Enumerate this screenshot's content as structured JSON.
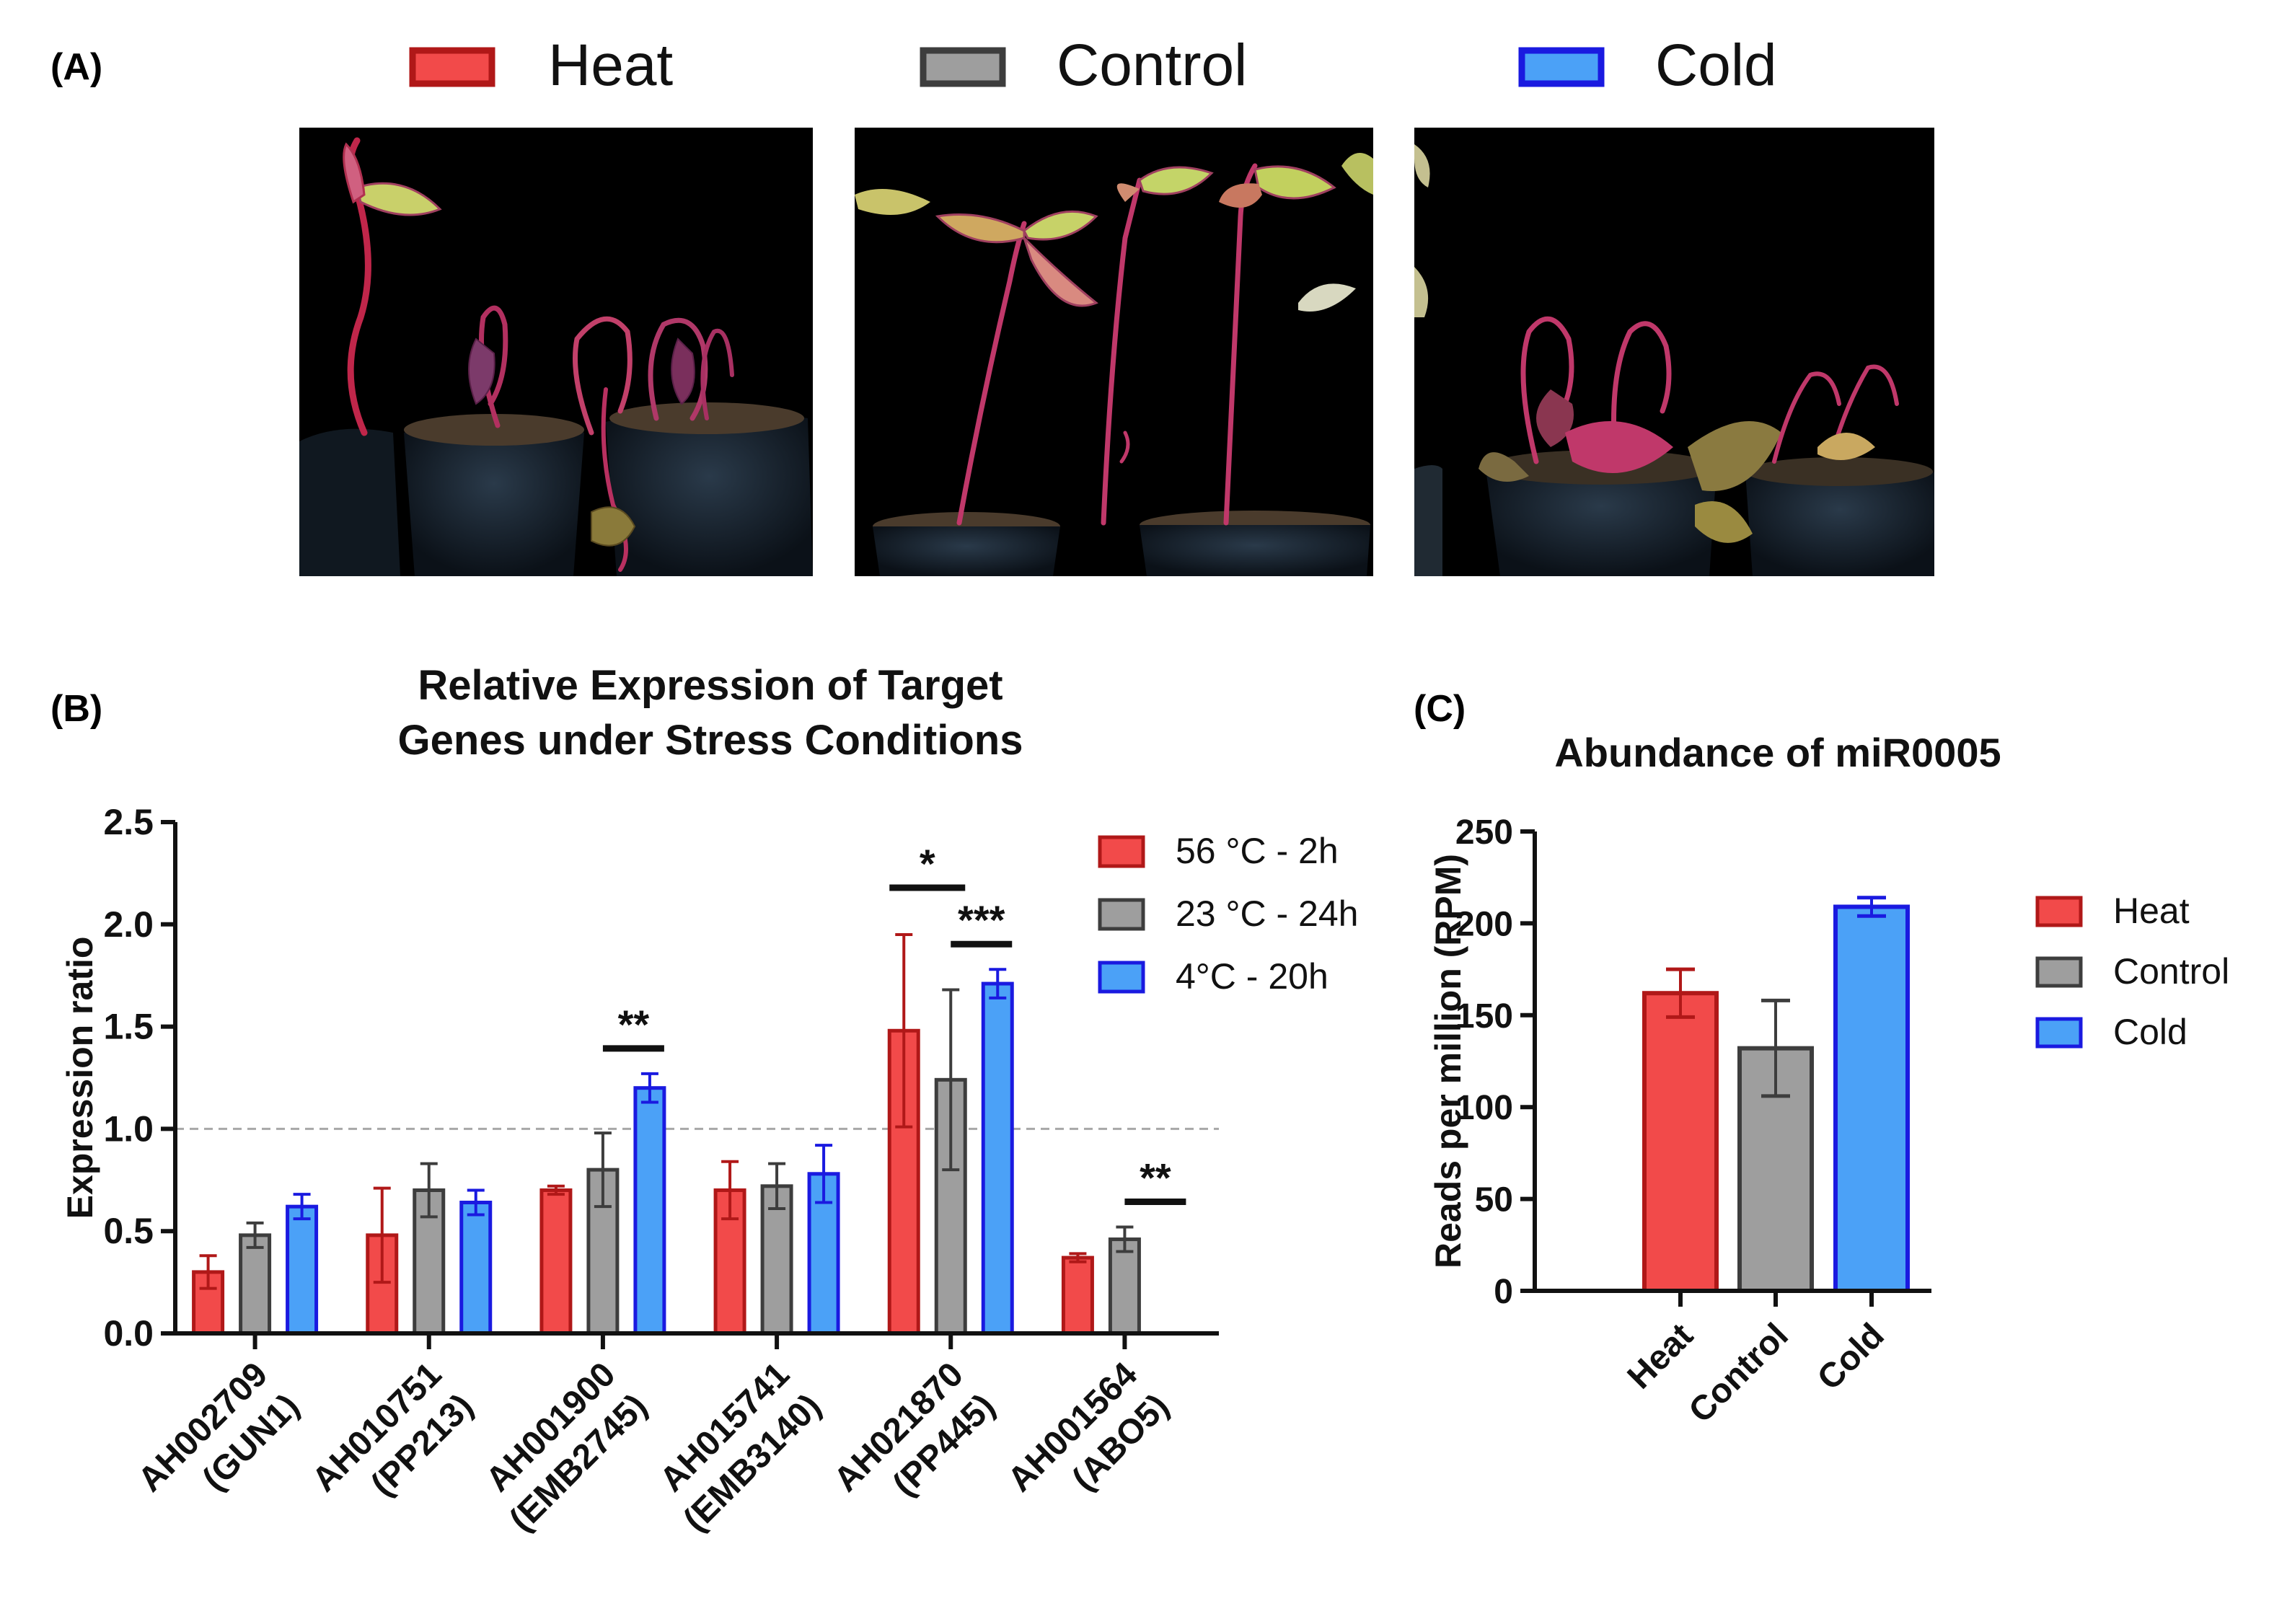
{
  "panels": {
    "a": {
      "label": "(A)",
      "legend": [
        {
          "name": "Heat",
          "fill": "#f24a4a",
          "stroke": "#b01818"
        },
        {
          "name": "Control",
          "fill": "#9e9e9e",
          "stroke": "#3d3d3d"
        },
        {
          "name": "Cold",
          "fill": "#4ba1f7",
          "stroke": "#1a1ae0"
        }
      ],
      "photos": [
        "Heat-stressed amaranth seedlings",
        "Control amaranth seedlings",
        "Cold-stressed amaranth seedlings"
      ]
    },
    "b": {
      "label": "(B)"
    },
    "c": {
      "label": "(C)"
    }
  },
  "colors": {
    "heat_fill": "#f24a4a",
    "heat_stroke": "#b01818",
    "control_fill": "#9e9e9e",
    "control_stroke": "#3d3d3d",
    "cold_fill": "#4ba1f7",
    "cold_stroke": "#1a1ae0"
  },
  "chart_data": [
    {
      "id": "B",
      "type": "bar",
      "title": [
        "Relative Expression of Target",
        "Genes under Stress Conditions"
      ],
      "xlabel": "",
      "ylabel": "Expression ratio",
      "ylim": [
        0,
        2.5
      ],
      "yticks": [
        "0.0",
        "0.5",
        "1.0",
        "1.5",
        "2.0",
        "2.5"
      ],
      "ytick_values": [
        0,
        0.5,
        1.0,
        1.5,
        2.0,
        2.5
      ],
      "reference_line": 1.0,
      "legend_position": "top-right",
      "categories": [
        [
          "AH002709",
          "(GUN1)"
        ],
        [
          "AH010751",
          "(PP213)"
        ],
        [
          "AH001900",
          "(EMB2745)"
        ],
        [
          "AH015741",
          "(EMB3140)"
        ],
        [
          "AH021870",
          "(PP445)"
        ],
        [
          "AH001564",
          "(ABO5)"
        ]
      ],
      "series": [
        {
          "name": "56 °C - 2h",
          "values": [
            0.3,
            0.48,
            0.7,
            0.7,
            1.48,
            0.37
          ],
          "errors": [
            0.08,
            0.23,
            0.02,
            0.14,
            0.47,
            0.02
          ]
        },
        {
          "name": "23 °C - 24h",
          "values": [
            0.48,
            0.7,
            0.8,
            0.72,
            1.24,
            0.46
          ],
          "errors": [
            0.06,
            0.13,
            0.18,
            0.11,
            0.44,
            0.06
          ]
        },
        {
          "name": "4°C - 20h",
          "values": [
            0.62,
            0.64,
            1.2,
            0.78,
            1.71,
            null
          ],
          "errors": [
            0.06,
            0.06,
            0.07,
            0.14,
            0.07,
            null
          ]
        }
      ],
      "significance": [
        {
          "category_index": 2,
          "from_series": 1,
          "to_series": 2,
          "label": "**"
        },
        {
          "category_index": 4,
          "from_series": 0,
          "to_series": 1,
          "label": "*"
        },
        {
          "category_index": 4,
          "from_series": 1,
          "to_series": 2,
          "label": "***"
        },
        {
          "category_index": 5,
          "from_series": 1,
          "to_series": 2,
          "label": "**"
        }
      ]
    },
    {
      "id": "C",
      "type": "bar",
      "title": "Abundance of miR0005",
      "xlabel": "",
      "ylabel": "Reads per million (RPM)",
      "ylim": [
        0,
        250
      ],
      "yticks": [
        "0",
        "50",
        "100",
        "150",
        "200",
        "250"
      ],
      "ytick_values": [
        0,
        50,
        100,
        150,
        200,
        250
      ],
      "legend_position": "right",
      "categories": [
        "Heat",
        "Control",
        "Cold"
      ],
      "values": [
        162,
        132,
        209
      ],
      "errors": [
        13,
        26,
        5
      ]
    }
  ]
}
